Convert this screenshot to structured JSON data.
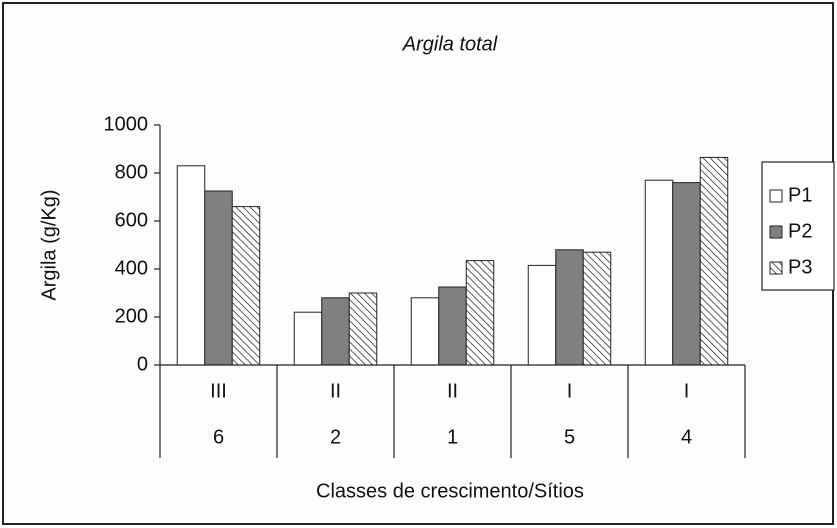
{
  "chart_data": {
    "type": "bar",
    "title": "Argila total",
    "y_label": "Argila (g/Kg)",
    "x_label": "Classes de crescimento/Sítios",
    "categories": [
      "III",
      "II",
      "II",
      "I",
      "I"
    ],
    "sites": [
      "6",
      "2",
      "1",
      "5",
      "4"
    ],
    "series": [
      {
        "name": "P1",
        "color": "#ffffff",
        "values": [
          830,
          220,
          280,
          415,
          770
        ]
      },
      {
        "name": "P2",
        "color": "#808080",
        "values": [
          725,
          280,
          325,
          480,
          760
        ]
      },
      {
        "name": "P3",
        "color": "#ffffff",
        "pattern": "hatch",
        "values": [
          660,
          300,
          435,
          470,
          865
        ]
      }
    ],
    "ylim": [
      0,
      1000
    ],
    "yticks": [
      0,
      200,
      400,
      600,
      800,
      1000
    ],
    "legend": "right"
  }
}
